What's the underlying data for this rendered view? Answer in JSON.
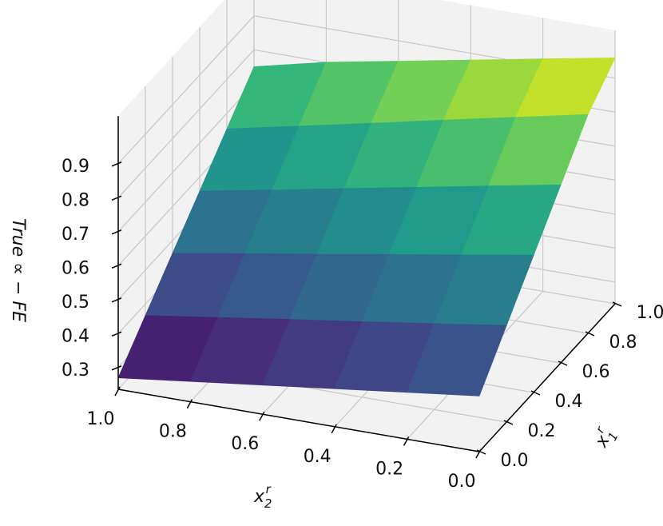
{
  "chart_data": {
    "type": "surface",
    "x1_label": {
      "base": "x",
      "sub": "1",
      "sup": "r"
    },
    "x2_label": {
      "base": "x",
      "sub": "2",
      "sup": "r"
    },
    "z_label": "True ∝ − FE",
    "x1": [
      0,
      0.2,
      0.4,
      0.6,
      0.8,
      1
    ],
    "x2": [
      0,
      0.2,
      0.4,
      0.6,
      0.8,
      1
    ],
    "z": [
      [
        0.4,
        0.374,
        0.348,
        0.322,
        0.296,
        0.27
      ],
      [
        0.52,
        0.489,
        0.458,
        0.428,
        0.397,
        0.366
      ],
      [
        0.64,
        0.604,
        0.569,
        0.533,
        0.498,
        0.462
      ],
      [
        0.76,
        0.72,
        0.679,
        0.639,
        0.598,
        0.558
      ],
      [
        0.88,
        0.835,
        0.79,
        0.744,
        0.699,
        0.654
      ],
      [
        0.96,
        0.92,
        0.88,
        0.84,
        0.8,
        0.75
      ]
    ],
    "x1lim": [
      0,
      1
    ],
    "x2lim": [
      0,
      1
    ],
    "zlim": [
      0.236,
      1.04
    ],
    "x1ticks": [
      {
        "value": 0,
        "label": "0.0"
      },
      0.2,
      0.4,
      0.6,
      0.8,
      {
        "value": 1,
        "label": "1.0"
      }
    ],
    "x2ticks": [
      {
        "value": 0,
        "label": "0.0"
      },
      0.2,
      0.4,
      0.6,
      0.8,
      {
        "value": 1,
        "label": "1.0"
      }
    ],
    "zticks": [
      0.3,
      0.4,
      0.5,
      0.6,
      0.7,
      0.8,
      0.9
    ],
    "colormap": "viridis",
    "grid": true
  }
}
